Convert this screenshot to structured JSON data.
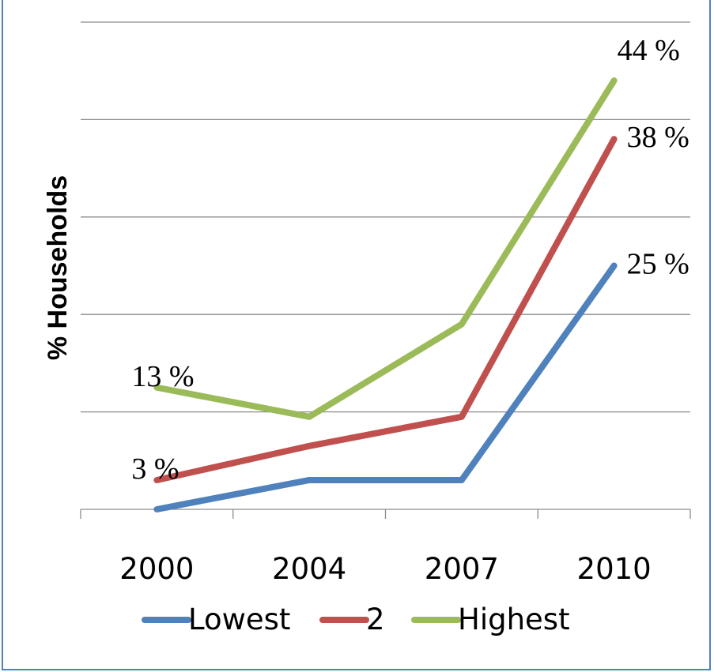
{
  "chart_data": {
    "type": "line",
    "title": "",
    "xlabel": "",
    "ylabel": "% Households",
    "categories": [
      "2000",
      "2004",
      "2007",
      "2010"
    ],
    "ylim": [
      0,
      50
    ],
    "grid": true,
    "legend": "bottom",
    "series": [
      {
        "name": "Lowest",
        "color": "#4f81bd",
        "values": [
          0,
          3,
          3,
          25
        ]
      },
      {
        "name": "2",
        "color": "#c0504d",
        "values": [
          3,
          6.5,
          9.5,
          38
        ]
      },
      {
        "name": "Highest",
        "color": "#9bbb59",
        "values": [
          12.5,
          9.5,
          19,
          44
        ]
      }
    ],
    "data_labels": [
      {
        "text": "13 %",
        "series": "Highest",
        "category": "2000"
      },
      {
        "text": "3 %",
        "series": "2",
        "category": "2000"
      },
      {
        "text": "44 %",
        "series": "Highest",
        "category": "2010"
      },
      {
        "text": "38 %",
        "series": "2",
        "category": "2010"
      },
      {
        "text": "25 %",
        "series": "Lowest",
        "category": "2010"
      }
    ]
  }
}
